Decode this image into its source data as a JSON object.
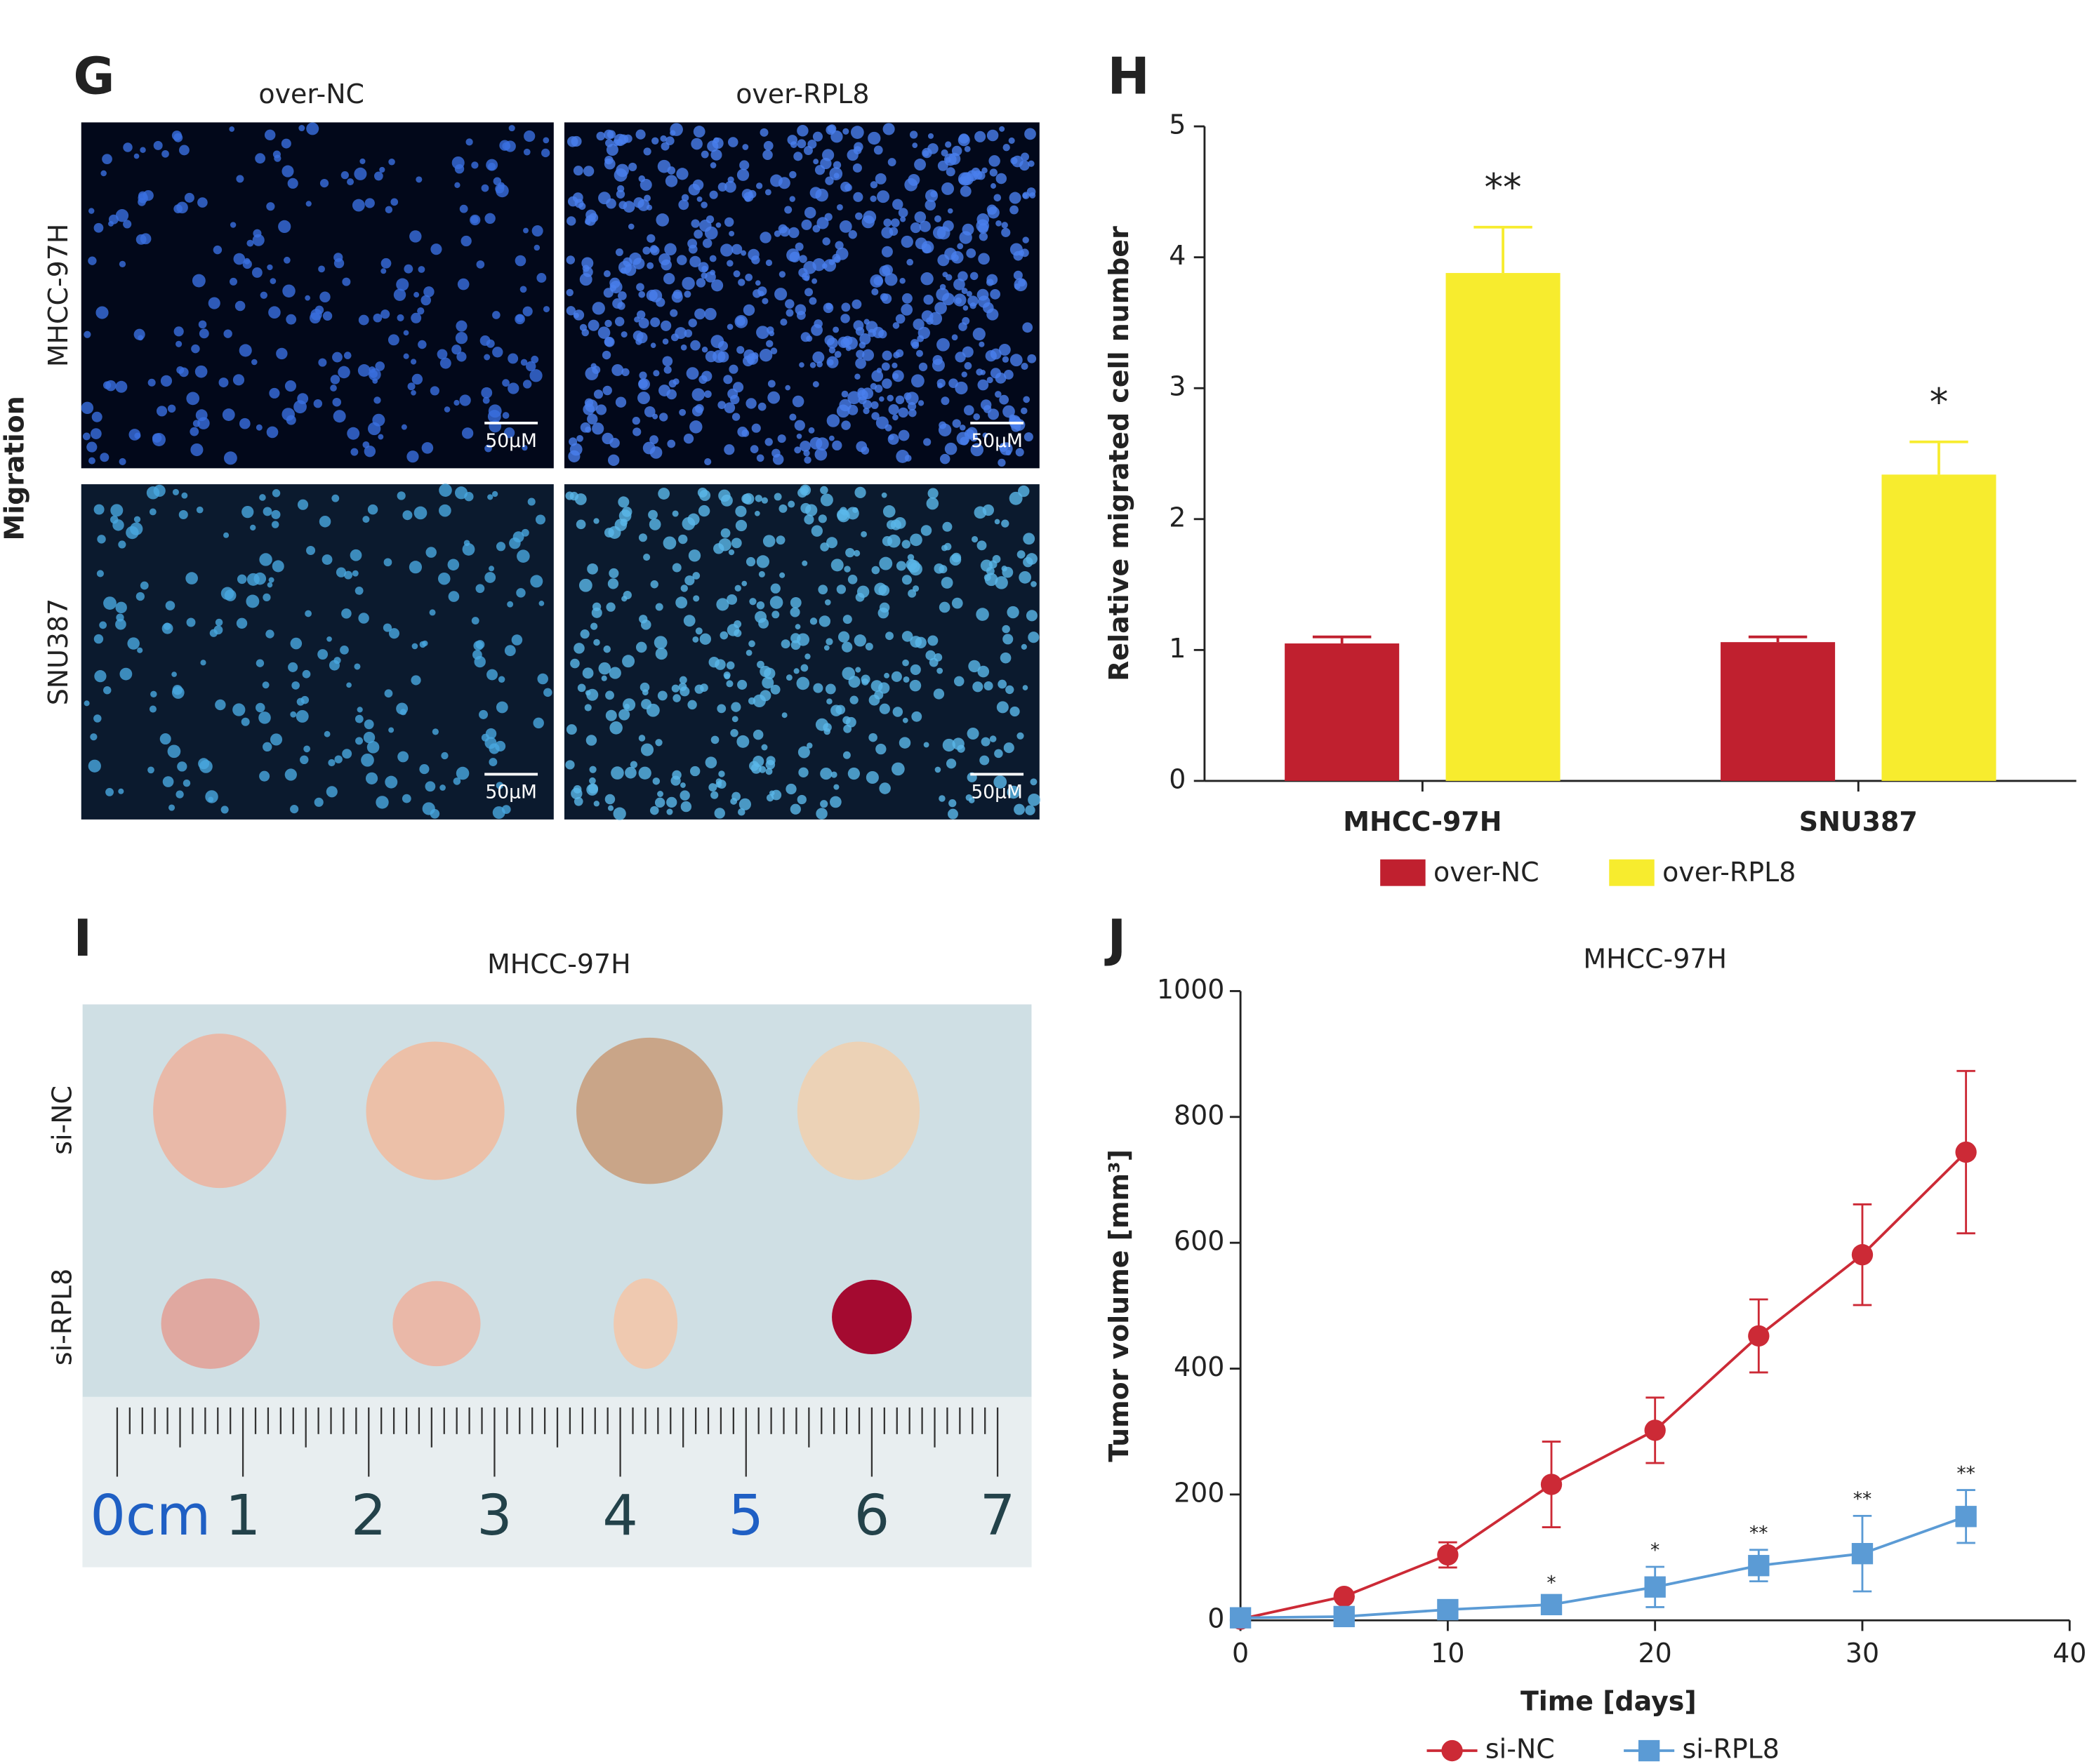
{
  "panel_labels": [
    "G",
    "H",
    "I",
    "J"
  ],
  "migration_panel": {
    "side_label": "Migration",
    "columns": [
      "over-NC",
      "over-RPL8"
    ],
    "rows": [
      "MHCC-97H",
      "SNU387"
    ],
    "scale_bar": "50μM"
  },
  "tumor_photo": {
    "title": "MHCC-97H",
    "rows": [
      "si-NC",
      "si-RPL8"
    ],
    "ruler_labels": [
      "0cm",
      "1",
      "2",
      "3",
      "4",
      "5",
      "6",
      "7"
    ]
  },
  "chart_data": [
    {
      "type": "bar",
      "y_label": "Relative migrated cell number",
      "categories": [
        "MHCC-97H",
        "SNU387"
      ],
      "series": [
        {
          "name": "over-NC",
          "color": "#c0202f",
          "values": [
            1.05,
            1.06
          ],
          "errors": [
            0.05,
            0.04
          ]
        },
        {
          "name": "over-RPL8",
          "color": "#f7ec2e",
          "values": [
            3.88,
            2.34
          ],
          "errors": [
            0.35,
            0.25
          ],
          "significance": [
            "**",
            "*"
          ]
        }
      ],
      "ylim": [
        0,
        5
      ],
      "yticks": [
        0,
        1,
        2,
        3,
        4,
        5
      ],
      "legend": "bottom"
    },
    {
      "type": "line",
      "title": "MHCC-97H",
      "x_label": "Time [days]",
      "y_label": "Tumor volume [mm³]",
      "x": [
        0,
        5,
        10,
        15,
        20,
        25,
        30,
        35
      ],
      "series": [
        {
          "name": "si-NC",
          "color": "#cc2a36",
          "marker": "circle",
          "values": [
            2,
            38,
            104,
            216,
            302,
            452,
            581,
            744
          ],
          "errors": [
            0,
            0,
            20,
            68,
            52,
            58,
            80,
            129
          ]
        },
        {
          "name": "si-RPL8",
          "color": "#5b9bd5",
          "marker": "square",
          "values": [
            4,
            6,
            17,
            25,
            53,
            87,
            106,
            165
          ],
          "errors": [
            0,
            0,
            6,
            8,
            32,
            25,
            60,
            42
          ],
          "significance": [
            null,
            null,
            null,
            "*",
            "*",
            "**",
            "**",
            "**"
          ]
        }
      ],
      "xlim": [
        0,
        40
      ],
      "xticks": [
        0,
        10,
        20,
        30,
        40
      ],
      "ylim": [
        0,
        1000
      ],
      "yticks": [
        0,
        200,
        400,
        600,
        800,
        1000
      ],
      "legend": "bottom"
    }
  ]
}
